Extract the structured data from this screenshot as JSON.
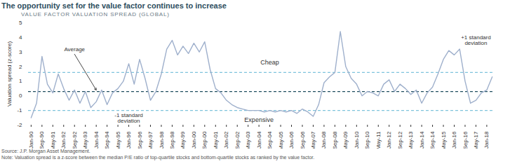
{
  "chart_data": {
    "type": "line",
    "title": "The opportunity set for the value factor continues to increase",
    "subtitle": "VALUE FACTOR VALUATION SPREAD (GLOBAL)",
    "source": "Source: J.P. Morgan Asset Management.",
    "note": "Note: Valuation spread is a z-score between the median P/E ratio of top-quartile stocks and bottom-quartile stocks as ranked by the value factor.",
    "y_label": "Valuation spread (z-score)",
    "categories": [
      "Jan-90",
      null,
      "Sep-90",
      null,
      "May-91",
      null,
      "Jan-92",
      null,
      "Sep-92",
      null,
      "May-93",
      null,
      "Jan-94",
      null,
      "Sep-94",
      null,
      "May-95",
      null,
      "Jan-96",
      null,
      "Sep-96",
      null,
      "May-97",
      null,
      "Jan-98",
      null,
      "Sep-98",
      null,
      "May-99",
      null,
      "Jan-00",
      null,
      "Sep-00",
      null,
      "May-01",
      null,
      "Jan-02",
      null,
      "Sep-02",
      null,
      "May-03",
      null,
      "Jan-04",
      null,
      "Sep-04",
      null,
      "May-05",
      null,
      "Jan-06",
      null,
      "Sep-06",
      null,
      "May-07",
      null,
      "Jan-08",
      null,
      "Sep-08",
      null,
      "May-09",
      null,
      "Jan-10",
      null,
      "Sep-10",
      null,
      "May-11",
      null,
      "Jan-12",
      null,
      "Sep-12",
      null,
      "May-13",
      null,
      "Jan-14",
      null,
      "Sep-14",
      null,
      "May-15",
      null,
      "Jan-16",
      null,
      "Sep-16",
      null,
      "May-17",
      null,
      "Jan-18",
      null
    ],
    "series": [
      {
        "name": "Valuation spread",
        "color": "#9fb0cc",
        "values": [
          -1.5,
          -0.5,
          2.7,
          0.8,
          0.2,
          1.5,
          0.5,
          -0.3,
          0.4,
          -0.5,
          0.3,
          -0.8,
          -0.4,
          0.4,
          -0.6,
          0.2,
          0.5,
          1.0,
          2.2,
          0.8,
          2.5,
          1.2,
          -0.3,
          0.3,
          1.5,
          3.2,
          3.8,
          2.8,
          3.4,
          2.9,
          3.6,
          3.0,
          3.7,
          1.8,
          0.5,
          0.2,
          -0.3,
          -0.6,
          -0.8,
          -0.9,
          -1.0,
          -1.0,
          -1.0,
          -1.1,
          -1.0,
          -1.1,
          -1.0,
          -1.1,
          -1.0,
          -1.2,
          -0.9,
          -1.1,
          -1.4,
          -0.6,
          0.9,
          1.3,
          1.6,
          4.4,
          2.0,
          1.2,
          0.8,
          0.0,
          0.3,
          0.2,
          0.0,
          0.8,
          1.1,
          0.3,
          0.8,
          0.5,
          0.1,
          0.4,
          -0.5,
          0.2,
          0.6,
          1.5,
          2.5,
          3.1,
          2.8,
          3.2,
          1.0,
          -0.5,
          -0.3,
          0.2,
          0.4,
          1.3
        ]
      }
    ],
    "reference_lines": [
      {
        "label": "Average",
        "type": "average",
        "value": 0.3,
        "color": "#1f4e5f",
        "line_style": "dashed",
        "x": "Sep-92",
        "y": 3.2
      },
      {
        "label": "+1 standard deviation",
        "type": "std",
        "value": 1.6,
        "color": "#7fc3dc",
        "line_style": "dashed",
        "x": "May-17",
        "y": 3.8
      },
      {
        "label": "-1 standard deviation",
        "type": "std",
        "value": -1.0,
        "color": "#7fc3dc",
        "line_style": "dashed",
        "x": "Jan-96",
        "y": -1.5
      }
    ],
    "annotations": [
      {
        "text": "Cheap",
        "x": "Sep-04",
        "y": 2.3
      },
      {
        "text": "Expensive",
        "x": "Jan-04",
        "y": -1.65
      }
    ],
    "ylim": [
      -2,
      5
    ],
    "yticks": [
      -2,
      -1,
      0,
      1,
      2,
      3,
      4,
      5
    ],
    "grid": false
  }
}
